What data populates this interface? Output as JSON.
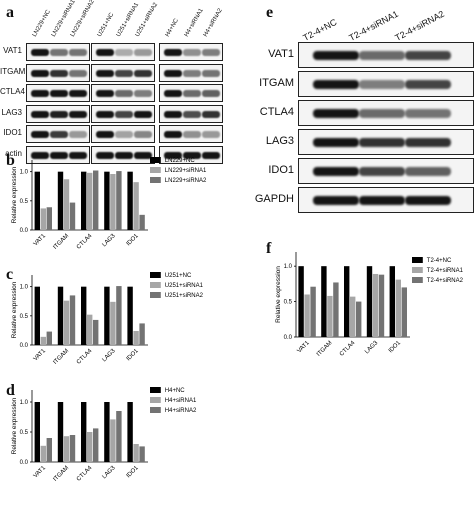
{
  "panels": {
    "a": "a",
    "b": "b",
    "c": "c",
    "d": "d",
    "e": "e",
    "f": "f"
  },
  "blot_a": {
    "lanes": [
      "LN229+NC",
      "LN229+siRNA1",
      "LN229+siRNA2",
      "U251+NC",
      "U251+siRNA1",
      "U251+siRNA2",
      "H4+NC",
      "H4+siRNA1",
      "H4+siRNA2"
    ],
    "rows": [
      "VAT1",
      "ITGAM",
      "CTLA4",
      "LAG3",
      "IDO1",
      "actin"
    ],
    "color": "#1a1a1a"
  },
  "blot_e": {
    "lanes": [
      "T2-4+NC",
      "T2-4+siRNA1",
      "T2-4+siRNA2"
    ],
    "rows": [
      "VAT1",
      "ITGAM",
      "CTLA4",
      "LAG3",
      "IDO1",
      "GAPDH"
    ]
  },
  "colors": {
    "nc": "#000000",
    "si1": "#a6a6a6",
    "si2": "#737373"
  },
  "chart_data": [
    {
      "id": "b",
      "type": "bar",
      "categories": [
        "VAT1",
        "ITGAM",
        "CTLA4",
        "LAG3",
        "IDO1"
      ],
      "ylabel": "Relative expression",
      "ylim": [
        0,
        1.2
      ],
      "yticks": [
        "0.0",
        "0.5",
        "1.0"
      ],
      "series": [
        {
          "name": "LN229+NC",
          "values": [
            1.0,
            1.0,
            1.0,
            1.0,
            1.0
          ]
        },
        {
          "name": "LN229+siRNA1",
          "values": [
            0.37,
            0.87,
            0.98,
            0.96,
            0.82
          ]
        },
        {
          "name": "LN229+siRNA2",
          "values": [
            0.39,
            0.47,
            1.02,
            1.01,
            0.26
          ]
        }
      ],
      "legend": "top-right"
    },
    {
      "id": "c",
      "type": "bar",
      "categories": [
        "VAT1",
        "ITGAM",
        "CTLA4",
        "LAG3",
        "IDO1"
      ],
      "ylabel": "Relative expression",
      "ylim": [
        0,
        1.2
      ],
      "yticks": [
        "0.0",
        "0.5",
        "1.0"
      ],
      "series": [
        {
          "name": "U251+NC",
          "values": [
            1.0,
            1.0,
            1.0,
            1.0,
            1.0
          ]
        },
        {
          "name": "U251+siRNA1",
          "values": [
            0.14,
            0.76,
            0.52,
            0.74,
            0.24
          ]
        },
        {
          "name": "U251+siRNA2",
          "values": [
            0.23,
            0.85,
            0.43,
            1.01,
            0.37
          ]
        }
      ],
      "legend": "top-right"
    },
    {
      "id": "d",
      "type": "bar",
      "categories": [
        "VAT1",
        "ITGAM",
        "CTLA4",
        "LAG3",
        "IDO1"
      ],
      "ylabel": "Relative expression",
      "ylim": [
        0,
        1.2
      ],
      "yticks": [
        "0.0",
        "0.5",
        "1.0"
      ],
      "series": [
        {
          "name": "H4+NC",
          "values": [
            1.0,
            1.0,
            1.0,
            1.0,
            1.0
          ]
        },
        {
          "name": "H4+siRNA1",
          "values": [
            0.27,
            0.43,
            0.5,
            0.71,
            0.3
          ]
        },
        {
          "name": "H4+siRNA2",
          "values": [
            0.4,
            0.45,
            0.56,
            0.85,
            0.26
          ]
        }
      ],
      "legend": "top-right"
    },
    {
      "id": "f",
      "type": "bar",
      "categories": [
        "VAT1",
        "ITGAM",
        "CTLA4",
        "LAG3",
        "IDO1"
      ],
      "ylabel": "Relative expression",
      "ylim": [
        0,
        1.2
      ],
      "yticks": [
        "0.0",
        "0.5",
        "1.0"
      ],
      "series": [
        {
          "name": "T2-4+NC",
          "values": [
            1.0,
            1.0,
            1.0,
            1.0,
            1.0
          ]
        },
        {
          "name": "T2-4+siRNA1",
          "values": [
            0.6,
            0.58,
            0.57,
            0.89,
            0.81
          ]
        },
        {
          "name": "T2-4+siRNA2",
          "values": [
            0.71,
            0.77,
            0.5,
            0.88,
            0.7
          ]
        }
      ],
      "legend": "top-right"
    }
  ]
}
